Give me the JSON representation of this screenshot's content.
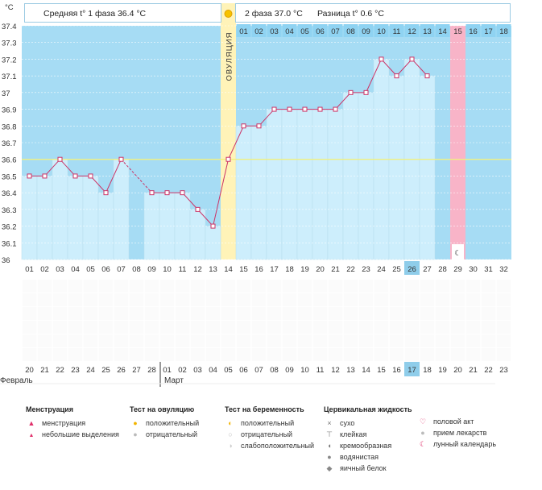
{
  "chart_data": {
    "type": "line",
    "ylabel": "°C",
    "ylim": [
      36,
      37.4
    ],
    "y_ticks": [
      "37.4",
      "37.3",
      "37.2",
      "37.1",
      "37",
      "36.9",
      "36.8",
      "36.7",
      "36.6",
      "36.5",
      "36.4",
      "36.3",
      "36.2",
      "36.1",
      "36"
    ],
    "y_tick_values": [
      37.4,
      37.3,
      37.2,
      37.1,
      37.0,
      36.9,
      36.8,
      36.7,
      36.6,
      36.5,
      36.4,
      36.3,
      36.2,
      36.1,
      36.0
    ],
    "cycle_days": [
      "01",
      "02",
      "03",
      "04",
      "05",
      "06",
      "07",
      "08",
      "09",
      "10",
      "11",
      "12",
      "13",
      "14",
      "15",
      "16",
      "17",
      "18",
      "19",
      "20",
      "21",
      "22",
      "23",
      "24",
      "25",
      "26",
      "27",
      "28",
      "29",
      "30",
      "31",
      "32"
    ],
    "dates": [
      "20",
      "21",
      "22",
      "23",
      "24",
      "25",
      "26",
      "27",
      "28",
      "01",
      "02",
      "03",
      "04",
      "05",
      "06",
      "07",
      "08",
      "09",
      "10",
      "11",
      "12",
      "13",
      "14",
      "15",
      "16",
      "17",
      "18",
      "19",
      "20",
      "21",
      "22",
      "23"
    ],
    "weekend_date_indices": [
      2,
      3,
      9,
      10,
      16,
      17,
      23,
      24,
      30,
      31
    ],
    "today_index": 25,
    "temperatures": [
      36.5,
      36.5,
      36.6,
      36.5,
      36.5,
      36.4,
      36.6,
      null,
      36.4,
      36.4,
      36.4,
      36.3,
      36.2,
      36.6,
      36.8,
      36.8,
      36.9,
      36.9,
      36.9,
      36.9,
      36.9,
      37.0,
      37.0,
      37.2,
      37.1,
      37.2,
      37.1,
      null,
      null,
      null,
      null,
      null
    ],
    "coverline": 36.6,
    "ovulation_day_index": 13,
    "ovulation_label": "ОВУЛЯЦИЯ",
    "phase2_days": [
      "01",
      "02",
      "03",
      "04",
      "05",
      "06",
      "07",
      "08",
      "09",
      "10",
      "11",
      "12",
      "13",
      "14",
      "15",
      "16",
      "17",
      "18"
    ],
    "phase2_highlight_index": 14,
    "phase1_summary": "Средняя t° 1 фаза 36.4 °С",
    "phase2_summary": "2 фаза 37.0 °С",
    "difference_summary": "Разница t° 0.6 °С",
    "month_labels": [
      "Февраль",
      "Март"
    ],
    "colors": {
      "background_sky": "#a6dcf4",
      "bar_fill": "#cdeefc",
      "line": "#cc3366",
      "coverline": "#f0f080",
      "ovulation_band": "#fff3b8",
      "pink_day": "#f8b4c8",
      "grid": "#e6e6e6",
      "today": "#8fcdea"
    }
  },
  "legend": {
    "menstruation": {
      "title": "Менструация",
      "items": [
        {
          "label": "менструация",
          "icon": "drop-icon"
        },
        {
          "label": "небольшие выделения",
          "icon": "small-drop-icon"
        }
      ]
    },
    "ovulation_test": {
      "title": "Тест на овуляцию",
      "items": [
        {
          "label": "положительный",
          "icon": "sun-icon"
        },
        {
          "label": "отрицательный",
          "icon": "gray-circle-icon"
        }
      ]
    },
    "pregnancy_test": {
      "title": "Тест на беременность",
      "items": [
        {
          "label": "положительный",
          "icon": "positive-test-icon"
        },
        {
          "label": "отрицательный",
          "icon": "negative-test-icon"
        },
        {
          "label": "слабоположительный",
          "icon": "weak-test-icon"
        }
      ]
    },
    "cervical_fluid": {
      "title": "Цервикальная жидкость",
      "items": [
        {
          "label": "сухо",
          "icon": "cross-icon"
        },
        {
          "label": "клейкая",
          "icon": "sticky-icon"
        },
        {
          "label": "кремообразная",
          "icon": "creamy-icon"
        },
        {
          "label": "водянистая",
          "icon": "watery-icon"
        },
        {
          "label": "яичный белок",
          "icon": "egg-white-icon"
        }
      ]
    },
    "other": {
      "items": [
        {
          "label": "половой акт",
          "icon": "heart-icon"
        },
        {
          "label": "прием лекарств",
          "icon": "pill-icon"
        },
        {
          "label": "лунный календарь",
          "icon": "moon-icon"
        }
      ]
    }
  }
}
